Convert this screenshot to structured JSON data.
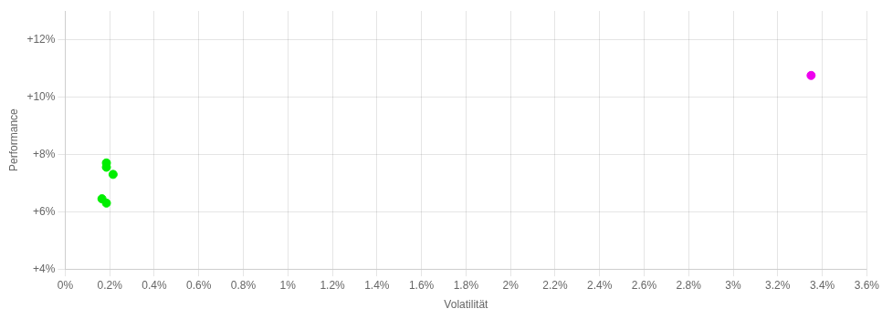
{
  "chart_data": {
    "type": "scatter",
    "xlabel": "Volatilität",
    "ylabel": "Performance",
    "xlim": [
      0,
      0.036
    ],
    "ylim": [
      0.04,
      0.13
    ],
    "xticks": [
      {
        "value": 0,
        "label": "0%"
      },
      {
        "value": 0.002,
        "label": "0.2%"
      },
      {
        "value": 0.004,
        "label": "0.4%"
      },
      {
        "value": 0.006,
        "label": "0.6%"
      },
      {
        "value": 0.008,
        "label": "0.8%"
      },
      {
        "value": 0.01,
        "label": "1%"
      },
      {
        "value": 0.012,
        "label": "1.2%"
      },
      {
        "value": 0.014,
        "label": "1.4%"
      },
      {
        "value": 0.016,
        "label": "1.6%"
      },
      {
        "value": 0.018,
        "label": "1.8%"
      },
      {
        "value": 0.02,
        "label": "2%"
      },
      {
        "value": 0.022,
        "label": "2.2%"
      },
      {
        "value": 0.024,
        "label": "2.4%"
      },
      {
        "value": 0.026,
        "label": "2.6%"
      },
      {
        "value": 0.028,
        "label": "2.8%"
      },
      {
        "value": 0.03,
        "label": "3%"
      },
      {
        "value": 0.032,
        "label": "3.2%"
      },
      {
        "value": 0.034,
        "label": "3.4%"
      },
      {
        "value": 0.036,
        "label": "3.6%"
      }
    ],
    "yticks": [
      {
        "value": 0.04,
        "label": "+4%"
      },
      {
        "value": 0.06,
        "label": "+6%"
      },
      {
        "value": 0.08,
        "label": "+8%"
      },
      {
        "value": 0.1,
        "label": "+10%"
      },
      {
        "value": 0.12,
        "label": "+12%"
      }
    ],
    "grid": true,
    "series": [
      {
        "color": "#00ee00",
        "x": [
          0.00185,
          0.00185,
          0.00215,
          0.00185,
          0.00165
        ],
        "values": [
          0.0755,
          0.077,
          0.073,
          0.063,
          0.0645
        ]
      },
      {
        "color": "#ee00ee",
        "x": [
          0.0335
        ],
        "values": [
          0.1075
        ]
      }
    ]
  }
}
